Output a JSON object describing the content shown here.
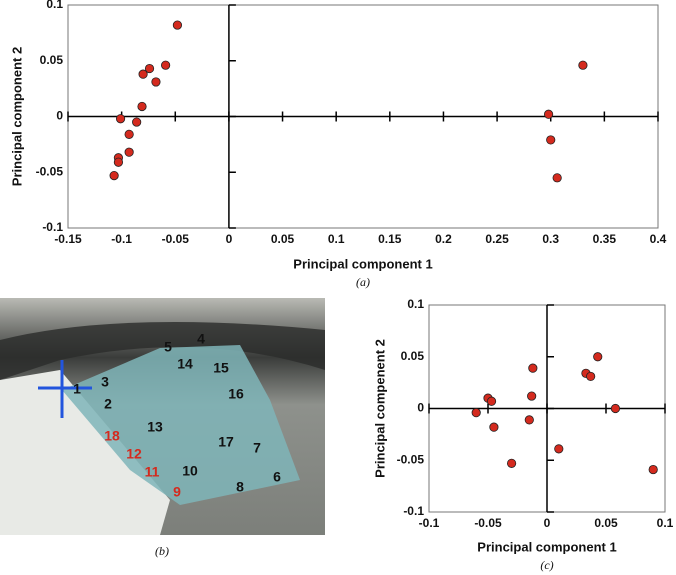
{
  "chart_data": [
    {
      "type": "scatter",
      "xlabel": "Principal component 1",
      "ylabel": "Principal component 2",
      "caption": "(a)",
      "xlim": [
        -0.15,
        0.4
      ],
      "ylim": [
        -0.1,
        0.1
      ],
      "xticks": [
        -0.15,
        -0.1,
        -0.05,
        0,
        0.05,
        0.1,
        0.15,
        0.2,
        0.25,
        0.3,
        0.35,
        0.4
      ],
      "yticks": [
        -0.1,
        -0.05,
        0,
        0.05,
        0.1
      ],
      "color": "#d42a1e",
      "x": [
        -0.048,
        -0.059,
        -0.074,
        -0.08,
        -0.068,
        -0.081,
        -0.086,
        -0.101,
        -0.093,
        -0.093,
        -0.103,
        -0.103,
        -0.107,
        0.33,
        0.298,
        0.3,
        0.306
      ],
      "values": [
        0.082,
        0.046,
        0.043,
        0.038,
        0.031,
        0.009,
        -0.005,
        -0.002,
        -0.016,
        -0.032,
        -0.037,
        -0.041,
        -0.053,
        0.046,
        0.002,
        -0.021,
        -0.055
      ]
    },
    {
      "type": "scatter",
      "xlabel": "Principal component 1",
      "ylabel": "Principal compenent 2",
      "caption": "(c)",
      "xlim": [
        -0.1,
        0.1
      ],
      "ylim": [
        -0.1,
        0.1
      ],
      "xticks": [
        -0.1,
        -0.05,
        0,
        0.05,
        0.1
      ],
      "yticks": [
        -0.1,
        -0.05,
        0,
        0.05,
        0.1
      ],
      "color": "#d42a1e",
      "x": [
        -0.06,
        -0.05,
        -0.047,
        -0.045,
        -0.03,
        -0.015,
        -0.013,
        -0.012,
        0.01,
        0.033,
        0.037,
        0.043,
        0.058,
        0.09
      ],
      "values": [
        -0.004,
        0.01,
        0.007,
        -0.018,
        -0.053,
        -0.011,
        0.012,
        0.039,
        -0.039,
        0.034,
        0.031,
        0.05,
        0,
        -0.059
      ]
    }
  ],
  "panel_b": {
    "caption": "(b)",
    "labels": [
      "1",
      "2",
      "3",
      "4",
      "5",
      "6",
      "7",
      "8",
      "9",
      "10",
      "11",
      "12",
      "13",
      "14",
      "15",
      "16",
      "17",
      "18"
    ],
    "label_colors": [
      "#111",
      "#111",
      "#111",
      "#111",
      "#111",
      "#111",
      "#111",
      "#111",
      "#d42a1e",
      "#111",
      "#d42a1e",
      "#d42a1e",
      "#111",
      "#111",
      "#111",
      "#111",
      "#111",
      "#d42a1e"
    ]
  }
}
